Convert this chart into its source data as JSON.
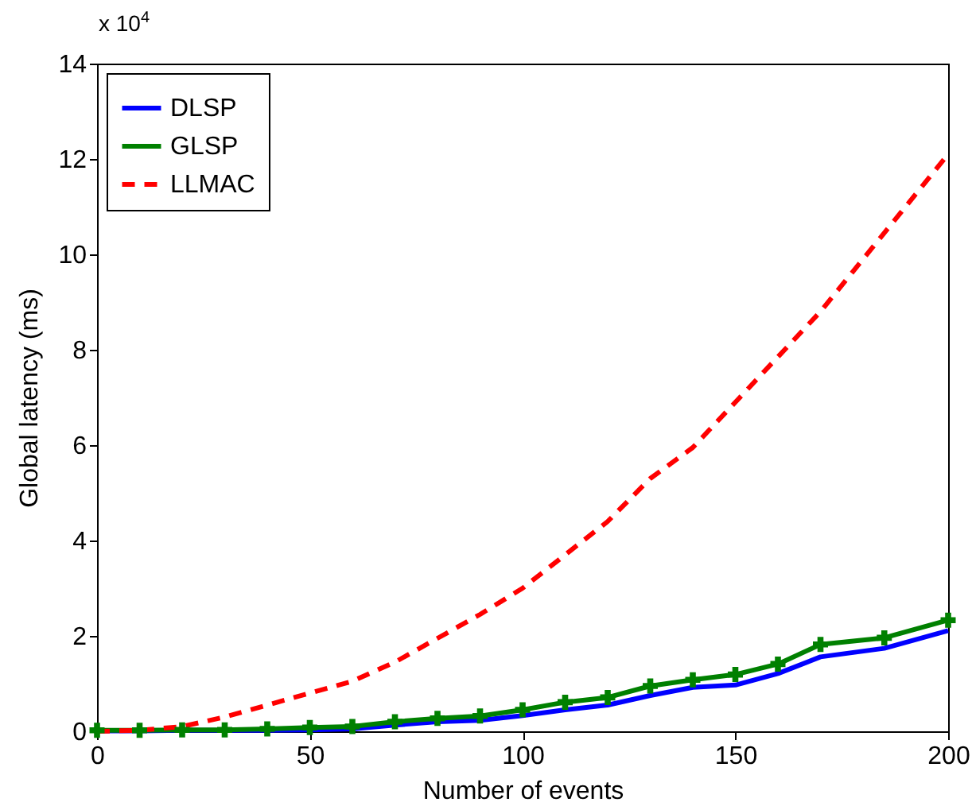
{
  "chart_data": {
    "type": "line",
    "xlabel": "Number of events",
    "ylabel": "Global latency (ms)",
    "annotations": [
      "x 10$^{4}$"
    ],
    "xlim": [
      0,
      200
    ],
    "xticks": [
      0,
      50,
      100,
      150,
      200
    ],
    "ylim": [
      0,
      14
    ],
    "yticks": [
      0,
      2,
      4,
      6,
      8,
      10,
      12,
      14
    ],
    "grid": false,
    "legend": "top left",
    "series": [
      {
        "name": "DLSP",
        "color": "#0000ff",
        "line_style": "solid",
        "marker": "none",
        "x": [
          0,
          10,
          20,
          30,
          40,
          50,
          60,
          70,
          80,
          90,
          100,
          110,
          120,
          130,
          140,
          150,
          160,
          170,
          185,
          200
        ],
        "values": [
          0.01,
          0.01,
          0.02,
          0.02,
          0.02,
          0.03,
          0.05,
          0.13,
          0.2,
          0.23,
          0.33,
          0.45,
          0.55,
          0.75,
          0.92,
          0.97,
          1.21,
          1.56,
          1.74,
          2.11
        ]
      },
      {
        "name": "GLSP",
        "color": "#008000",
        "line_style": "solid",
        "marker": "cross",
        "x": [
          0,
          10,
          20,
          30,
          40,
          50,
          60,
          70,
          80,
          90,
          100,
          110,
          120,
          130,
          140,
          150,
          160,
          170,
          185,
          200
        ],
        "values": [
          0.02,
          0.02,
          0.03,
          0.03,
          0.05,
          0.08,
          0.1,
          0.2,
          0.27,
          0.32,
          0.45,
          0.61,
          0.71,
          0.95,
          1.08,
          1.19,
          1.41,
          1.82,
          1.96,
          2.33
        ]
      },
      {
        "name": "LLMAC",
        "color": "#ff0000",
        "line_style": "dashed",
        "marker": "none",
        "x": [
          0,
          10,
          20,
          30,
          40,
          50,
          60,
          70,
          80,
          90,
          100,
          110,
          120,
          130,
          140,
          150,
          160,
          170,
          180,
          190,
          200
        ],
        "values": [
          0,
          0.02,
          0.1,
          0.3,
          0.55,
          0.8,
          1.05,
          1.45,
          1.95,
          2.45,
          3.0,
          3.7,
          4.4,
          5.3,
          5.95,
          6.9,
          7.85,
          8.8,
          9.9,
          11.0,
          12.1
        ]
      }
    ]
  }
}
